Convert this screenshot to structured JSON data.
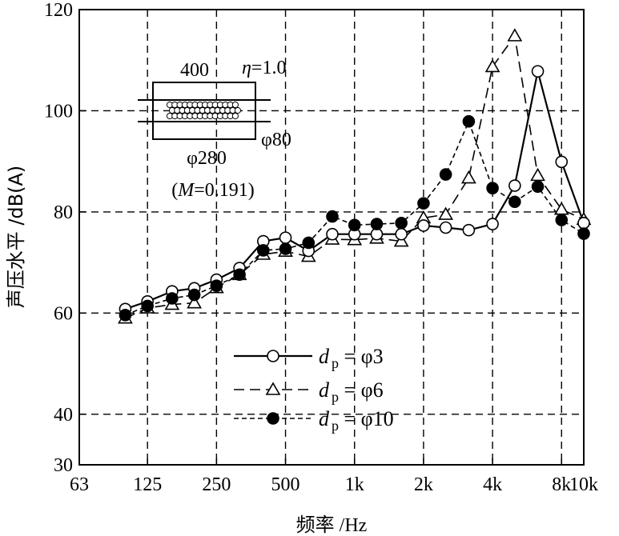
{
  "chart_data": {
    "type": "line",
    "xlabel": "频率 /Hz",
    "ylabel": "声压水平 /dB(A)",
    "x_scale": "log",
    "xlim": [
      63,
      10000
    ],
    "ylim": [
      30,
      120
    ],
    "grid": true,
    "x_ticks": [
      63,
      125,
      250,
      500,
      1000,
      2000,
      4000,
      8000,
      10000
    ],
    "x_tick_labels": [
      "63",
      "125",
      "250",
      "500",
      "1k",
      "2k",
      "4k",
      "8k",
      "10k"
    ],
    "y_ticks": [
      30,
      40,
      60,
      80,
      100,
      120
    ],
    "y_tick_labels": [
      "30",
      "40",
      "60",
      "80",
      "100",
      "120"
    ],
    "x": [
      100,
      125,
      160,
      200,
      250,
      315,
      400,
      500,
      630,
      800,
      1000,
      1250,
      1600,
      2000,
      2500,
      3150,
      4000,
      5000,
      6300,
      8000,
      10000
    ],
    "legend_position": "lower-center",
    "series": [
      {
        "name": "d_p = φ3",
        "legend_main": "d",
        "legend_sub": "p",
        "legend_tail": " = φ3",
        "line": "solid",
        "marker": "open-circle",
        "values": [
          60.8,
          62.3,
          64.3,
          64.9,
          66.6,
          68.9,
          74.2,
          74.9,
          72.3,
          75.6,
          75.6,
          75.6,
          75.6,
          77.3,
          76.9,
          76.4,
          77.6,
          85.2,
          107.8,
          89.9,
          77.8
        ]
      },
      {
        "name": "d_p = φ6",
        "legend_main": "d",
        "legend_sub": "p",
        "legend_tail": " = φ6",
        "line": "long-dash",
        "marker": "open-triangle",
        "values": [
          59.0,
          61.0,
          61.7,
          62.0,
          65.0,
          67.6,
          71.6,
          72.2,
          71.2,
          74.6,
          74.5,
          74.8,
          74.2,
          78.8,
          79.5,
          86.7,
          108.7,
          114.8,
          87.2,
          80.5,
          78.5
        ]
      },
      {
        "name": "d_p = φ10",
        "legend_main": "d",
        "legend_sub": "p",
        "legend_tail": " = φ10",
        "line": "short-dash",
        "marker": "filled-circle",
        "values": [
          59.6,
          61.4,
          62.9,
          63.6,
          65.4,
          67.6,
          72.4,
          72.7,
          73.9,
          79.1,
          77.4,
          77.6,
          77.8,
          81.7,
          87.4,
          97.9,
          84.7,
          82.0,
          85.0,
          78.4,
          75.7
        ]
      }
    ]
  },
  "inset": {
    "length_label": "400",
    "eta_symbol": "η",
    "eta_value": "=1.0",
    "outer_diameter_label": "φ280",
    "inner_diameter_label": "φ80",
    "porosity_open": "(",
    "porosity_symbol": "M",
    "porosity_value": "=0.191)"
  }
}
